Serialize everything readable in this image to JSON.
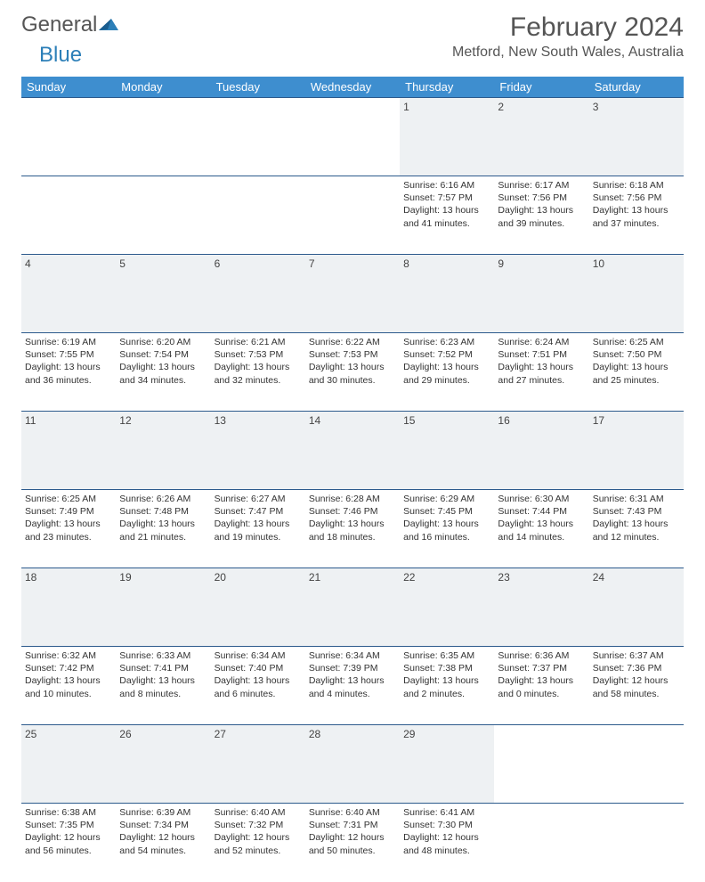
{
  "logo": {
    "word1": "General",
    "word2": "Blue"
  },
  "title": "February 2024",
  "location": "Metford, New South Wales, Australia",
  "colors": {
    "header_bg": "#3e8ecf",
    "border": "#2c5a8c",
    "daynum_bg": "#eef1f3",
    "logo_blue": "#2c7fb8"
  },
  "weekdays": [
    "Sunday",
    "Monday",
    "Tuesday",
    "Wednesday",
    "Thursday",
    "Friday",
    "Saturday"
  ],
  "weeks": [
    [
      null,
      null,
      null,
      null,
      {
        "n": "1",
        "sr": "Sunrise: 6:16 AM",
        "ss": "Sunset: 7:57 PM",
        "dl": "Daylight: 13 hours and 41 minutes."
      },
      {
        "n": "2",
        "sr": "Sunrise: 6:17 AM",
        "ss": "Sunset: 7:56 PM",
        "dl": "Daylight: 13 hours and 39 minutes."
      },
      {
        "n": "3",
        "sr": "Sunrise: 6:18 AM",
        "ss": "Sunset: 7:56 PM",
        "dl": "Daylight: 13 hours and 37 minutes."
      }
    ],
    [
      {
        "n": "4",
        "sr": "Sunrise: 6:19 AM",
        "ss": "Sunset: 7:55 PM",
        "dl": "Daylight: 13 hours and 36 minutes."
      },
      {
        "n": "5",
        "sr": "Sunrise: 6:20 AM",
        "ss": "Sunset: 7:54 PM",
        "dl": "Daylight: 13 hours and 34 minutes."
      },
      {
        "n": "6",
        "sr": "Sunrise: 6:21 AM",
        "ss": "Sunset: 7:53 PM",
        "dl": "Daylight: 13 hours and 32 minutes."
      },
      {
        "n": "7",
        "sr": "Sunrise: 6:22 AM",
        "ss": "Sunset: 7:53 PM",
        "dl": "Daylight: 13 hours and 30 minutes."
      },
      {
        "n": "8",
        "sr": "Sunrise: 6:23 AM",
        "ss": "Sunset: 7:52 PM",
        "dl": "Daylight: 13 hours and 29 minutes."
      },
      {
        "n": "9",
        "sr": "Sunrise: 6:24 AM",
        "ss": "Sunset: 7:51 PM",
        "dl": "Daylight: 13 hours and 27 minutes."
      },
      {
        "n": "10",
        "sr": "Sunrise: 6:25 AM",
        "ss": "Sunset: 7:50 PM",
        "dl": "Daylight: 13 hours and 25 minutes."
      }
    ],
    [
      {
        "n": "11",
        "sr": "Sunrise: 6:25 AM",
        "ss": "Sunset: 7:49 PM",
        "dl": "Daylight: 13 hours and 23 minutes."
      },
      {
        "n": "12",
        "sr": "Sunrise: 6:26 AM",
        "ss": "Sunset: 7:48 PM",
        "dl": "Daylight: 13 hours and 21 minutes."
      },
      {
        "n": "13",
        "sr": "Sunrise: 6:27 AM",
        "ss": "Sunset: 7:47 PM",
        "dl": "Daylight: 13 hours and 19 minutes."
      },
      {
        "n": "14",
        "sr": "Sunrise: 6:28 AM",
        "ss": "Sunset: 7:46 PM",
        "dl": "Daylight: 13 hours and 18 minutes."
      },
      {
        "n": "15",
        "sr": "Sunrise: 6:29 AM",
        "ss": "Sunset: 7:45 PM",
        "dl": "Daylight: 13 hours and 16 minutes."
      },
      {
        "n": "16",
        "sr": "Sunrise: 6:30 AM",
        "ss": "Sunset: 7:44 PM",
        "dl": "Daylight: 13 hours and 14 minutes."
      },
      {
        "n": "17",
        "sr": "Sunrise: 6:31 AM",
        "ss": "Sunset: 7:43 PM",
        "dl": "Daylight: 13 hours and 12 minutes."
      }
    ],
    [
      {
        "n": "18",
        "sr": "Sunrise: 6:32 AM",
        "ss": "Sunset: 7:42 PM",
        "dl": "Daylight: 13 hours and 10 minutes."
      },
      {
        "n": "19",
        "sr": "Sunrise: 6:33 AM",
        "ss": "Sunset: 7:41 PM",
        "dl": "Daylight: 13 hours and 8 minutes."
      },
      {
        "n": "20",
        "sr": "Sunrise: 6:34 AM",
        "ss": "Sunset: 7:40 PM",
        "dl": "Daylight: 13 hours and 6 minutes."
      },
      {
        "n": "21",
        "sr": "Sunrise: 6:34 AM",
        "ss": "Sunset: 7:39 PM",
        "dl": "Daylight: 13 hours and 4 minutes."
      },
      {
        "n": "22",
        "sr": "Sunrise: 6:35 AM",
        "ss": "Sunset: 7:38 PM",
        "dl": "Daylight: 13 hours and 2 minutes."
      },
      {
        "n": "23",
        "sr": "Sunrise: 6:36 AM",
        "ss": "Sunset: 7:37 PM",
        "dl": "Daylight: 13 hours and 0 minutes."
      },
      {
        "n": "24",
        "sr": "Sunrise: 6:37 AM",
        "ss": "Sunset: 7:36 PM",
        "dl": "Daylight: 12 hours and 58 minutes."
      }
    ],
    [
      {
        "n": "25",
        "sr": "Sunrise: 6:38 AM",
        "ss": "Sunset: 7:35 PM",
        "dl": "Daylight: 12 hours and 56 minutes."
      },
      {
        "n": "26",
        "sr": "Sunrise: 6:39 AM",
        "ss": "Sunset: 7:34 PM",
        "dl": "Daylight: 12 hours and 54 minutes."
      },
      {
        "n": "27",
        "sr": "Sunrise: 6:40 AM",
        "ss": "Sunset: 7:32 PM",
        "dl": "Daylight: 12 hours and 52 minutes."
      },
      {
        "n": "28",
        "sr": "Sunrise: 6:40 AM",
        "ss": "Sunset: 7:31 PM",
        "dl": "Daylight: 12 hours and 50 minutes."
      },
      {
        "n": "29",
        "sr": "Sunrise: 6:41 AM",
        "ss": "Sunset: 7:30 PM",
        "dl": "Daylight: 12 hours and 48 minutes."
      },
      null,
      null
    ]
  ]
}
